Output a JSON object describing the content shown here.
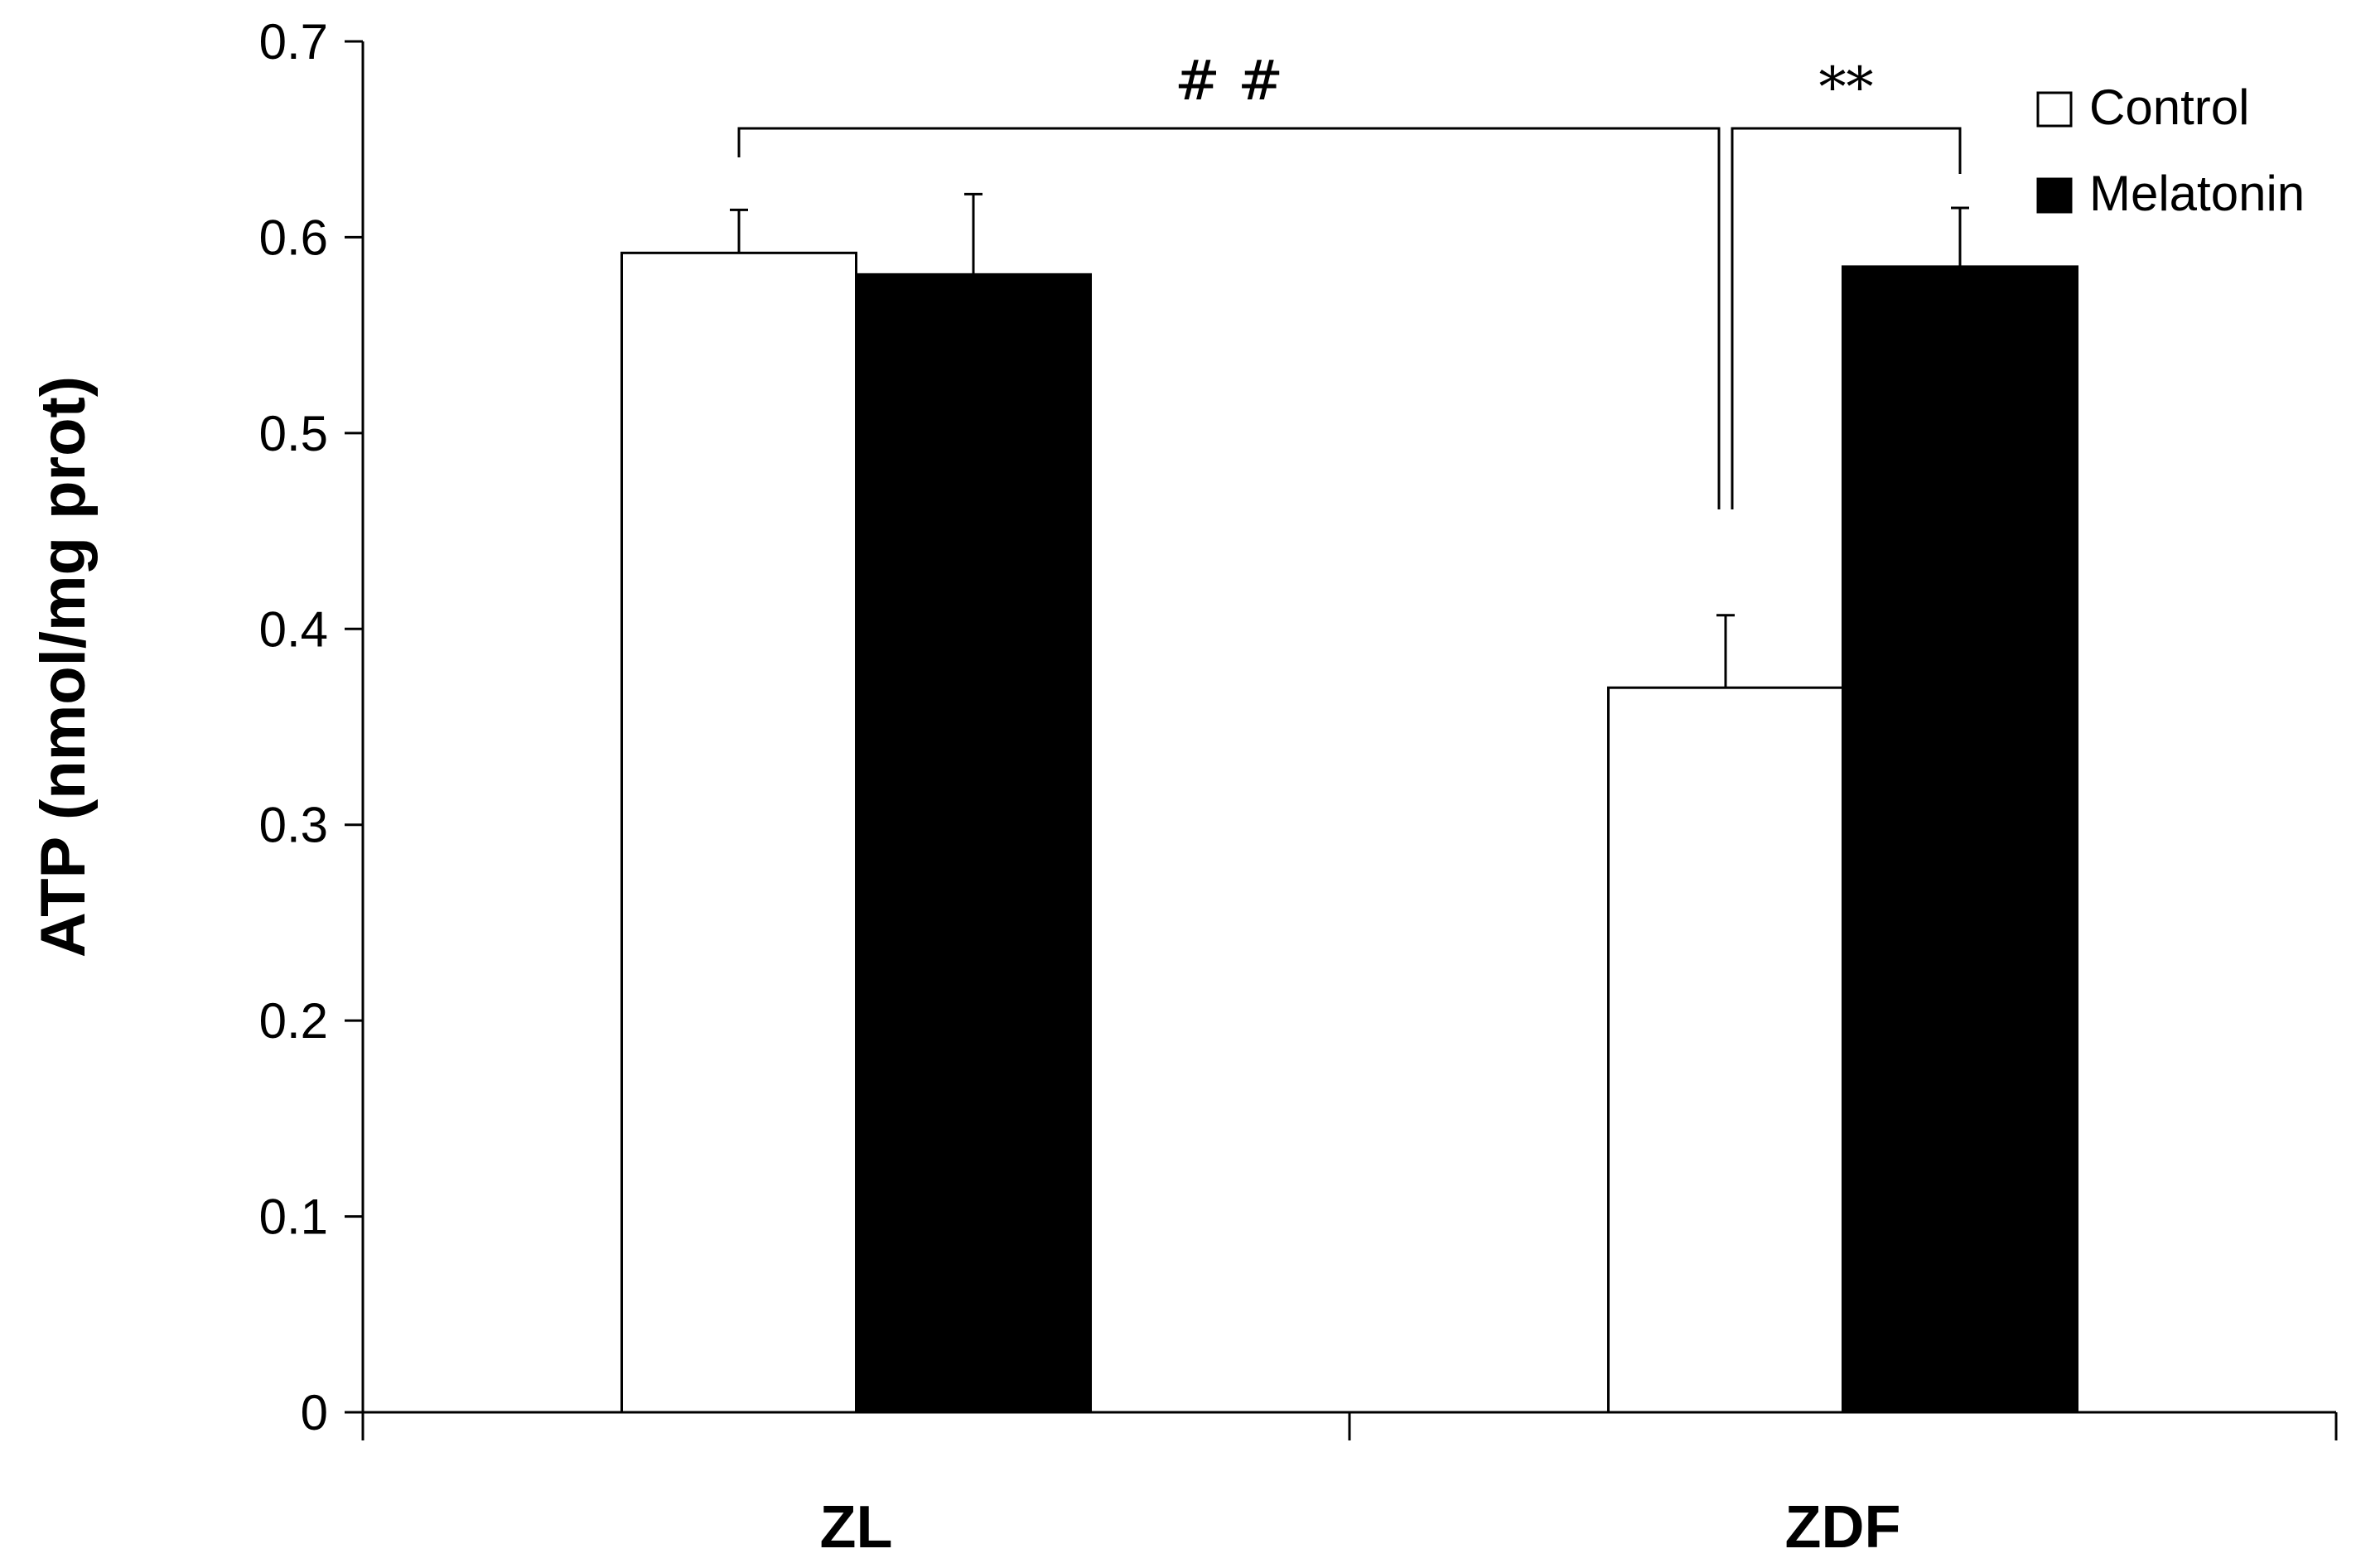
{
  "chart_data": {
    "type": "bar",
    "title": "",
    "xlabel": "",
    "ylabel": "ATP (nmol/mg prot)",
    "ylim": [
      0,
      0.7
    ],
    "yticks": [
      "0",
      "0.1",
      "0.2",
      "0.3",
      "0.4",
      "0.5",
      "0.6",
      "0.7"
    ],
    "ytick_values": [
      0,
      0.1,
      0.2,
      0.3,
      0.4,
      0.5,
      0.6,
      0.7
    ],
    "categories": [
      "ZL",
      "ZDF"
    ],
    "series": [
      {
        "name": "Control",
        "values": [
          0.592,
          0.37
        ],
        "errors": [
          0.022,
          0.037
        ],
        "color": "#ffffff"
      },
      {
        "name": "Melatonin",
        "values": [
          0.581,
          0.585
        ],
        "errors": [
          0.041,
          0.03
        ],
        "color": "#000000"
      }
    ],
    "grid": false,
    "legend_position": "top-right",
    "annotations": [
      {
        "text": "# #",
        "between": [
          "ZL Control",
          "ZDF Control"
        ]
      },
      {
        "text": "**",
        "between": [
          "ZDF Control",
          "ZDF Melatonin"
        ]
      }
    ]
  }
}
